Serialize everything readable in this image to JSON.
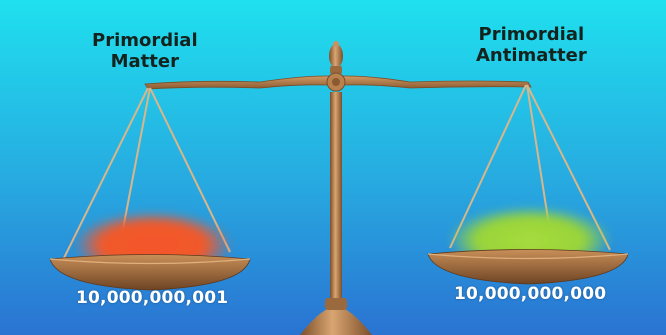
{
  "left_pan": {
    "label_line1": "Primordial",
    "label_line2": "Matter",
    "count": "10,000,000,001",
    "blob_color": "#f4552a"
  },
  "right_pan": {
    "label_line1": "Primordial",
    "label_line2": "Antimatter",
    "count": "10,000,000,000",
    "blob_color": "#9ed63a"
  },
  "colors": {
    "sky_top": "#1fe0ee",
    "sky_bottom": "#2a73d2",
    "bronze": "#b07a48",
    "bronze_dark": "#7c4f2a"
  }
}
